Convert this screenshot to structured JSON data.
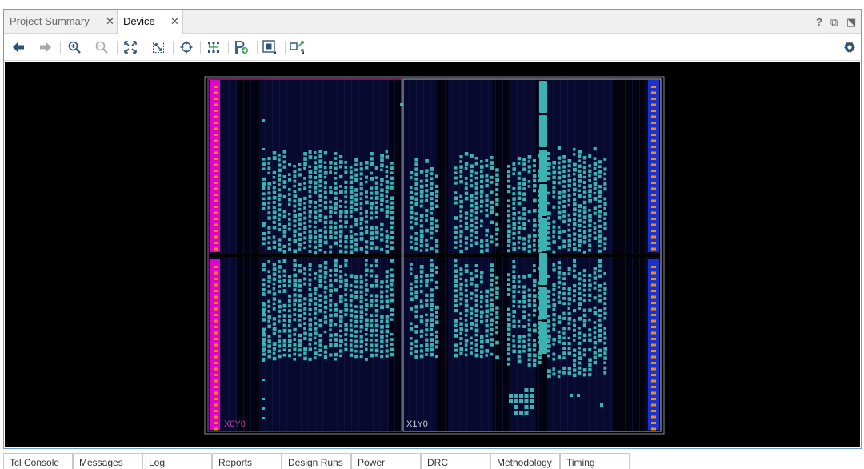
{
  "tabs": [
    {
      "label": "Project Summary",
      "active": false
    },
    {
      "label": "Device",
      "active": true
    }
  ],
  "window_controls": {
    "help": "?",
    "restore": "⧉",
    "maximize": "⬔"
  },
  "toolbar": {
    "icons": [
      "arrow-left-icon",
      "arrow-right-icon",
      "zoom-in-icon",
      "zoom-out-icon",
      "zoom-fit-icon",
      "zoom-selection-icon",
      "crosshair-icon",
      "route-icon",
      "add-pblock-icon",
      "cell-icon",
      "select-area-icon",
      "gear-icon"
    ]
  },
  "device": {
    "clock_regions": [
      {
        "label": "X0Y0"
      },
      {
        "label": "X1Y0"
      }
    ],
    "colors": {
      "background": "#000000",
      "fabric": "#070a2e",
      "cell": "#3bb3b3",
      "io_left": "#e000d0",
      "io_right": "#1a33cc",
      "io_pin": "#ff8a00",
      "region_border_left": "#c040a0",
      "region_border_right": "#b9b9c9"
    }
  },
  "bottom_tabs": [
    "Tcl Console",
    "Messages",
    "Log",
    "Reports",
    "Design Runs",
    "Power",
    "DRC",
    "Methodology",
    "Timing"
  ]
}
